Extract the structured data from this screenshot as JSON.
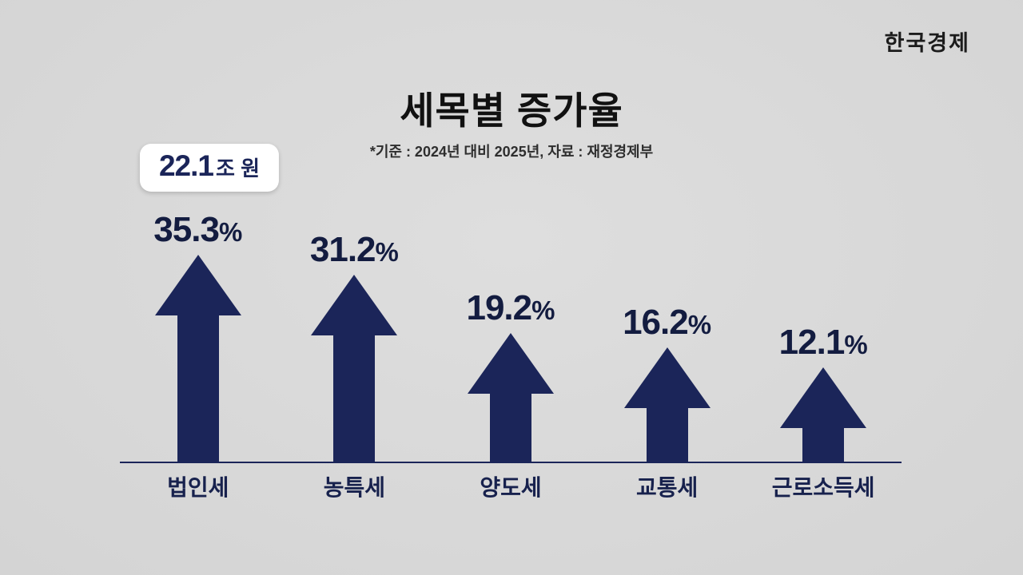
{
  "brand": {
    "logo_text": "한국경제"
  },
  "header": {
    "title": "세목별 증가율",
    "subtitle": "*기준 : 2024년 대비 2025년, 자료 : 재정경제부"
  },
  "chart_data": {
    "type": "bar",
    "title": "세목별 증가율",
    "subtitle": "*기준 : 2024년 대비 2025년, 자료 : 재정경제부",
    "categories": [
      "법인세",
      "농특세",
      "양도세",
      "교통세",
      "근로소득세"
    ],
    "values": [
      35.3,
      31.2,
      19.2,
      16.2,
      12.1
    ],
    "value_strings": [
      "35.3",
      "31.2",
      "19.2",
      "16.2",
      "12.1"
    ],
    "percent_sign": "%",
    "unit": "%",
    "callout": {
      "value": "22.1",
      "unit": "조 원",
      "attached_to": "법인세"
    },
    "bar_color": "#1b2559",
    "text_color": "#131c40",
    "background": "#d8d8d8",
    "baseline": true,
    "legend": false,
    "grid": false,
    "ylim": [
      0,
      40
    ]
  }
}
